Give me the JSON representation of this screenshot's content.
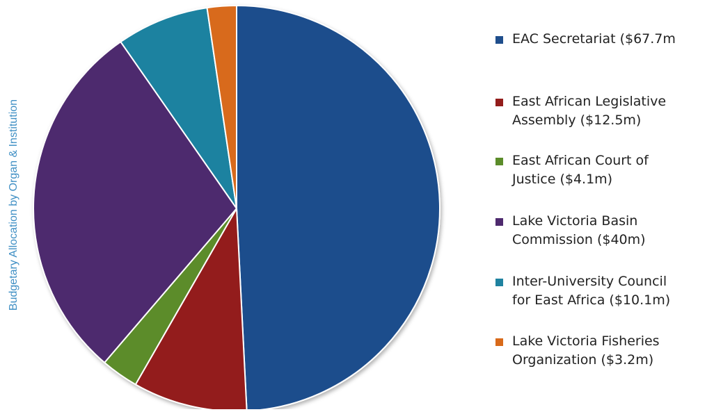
{
  "chart_data": {
    "type": "pie",
    "title": "",
    "ylabel": "Budgetary Allocation by Organ & Institution",
    "slices": [
      {
        "label": "EAC Secretariat ($67.7m",
        "label_lines": [
          "EAC Secretariat ($67.7m"
        ],
        "value": 67.7,
        "color": "#1f4e8c"
      },
      {
        "label": "East African Legislative Assembly ($12.5m)",
        "label_lines": [
          "East African Legislative",
          "Assembly ($12.5m)"
        ],
        "value": 12.5,
        "color": "#931d1b"
      },
      {
        "label": "East African Court of Justice ($4.1m)",
        "label_lines": [
          "East African Court of",
          "Justice ($4.1m)"
        ],
        "value": 4.1,
        "color": "#5b8c2a"
      },
      {
        "label": "Lake Victoria Basin Commission ($40m)",
        "label_lines": [
          "Lake Victoria Basin",
          "Commission ($40m)"
        ],
        "value": 40,
        "color": "#4e2a6e"
      },
      {
        "label": "Inter-University Council for East Africa ($10.1m)",
        "label_lines": [
          "Inter-University Council",
          "for East Africa ($10.1m)"
        ],
        "value": 10.1,
        "color": "#1f82a0"
      },
      {
        "label": "Lake Victoria Fisheries Organization ($3.2m)",
        "label_lines": [
          "Lake Victoria Fisheries",
          "Organization ($3.2m)"
        ],
        "value": 3.2,
        "color": "#d86a1a"
      }
    ],
    "start": "12 o'clock",
    "direction": "clockwise",
    "legend": "right"
  }
}
